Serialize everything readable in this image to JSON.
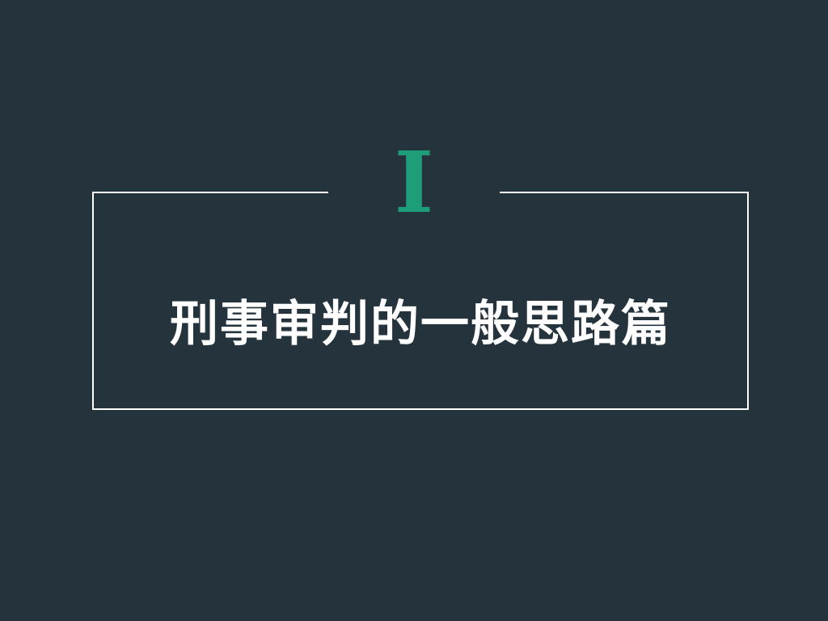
{
  "slide": {
    "section_numeral": "I",
    "title": "刑事审判的一般思路篇"
  },
  "colors": {
    "background": "#24333c",
    "accent": "#1e9e78",
    "frame": "#ffffff",
    "title": "#ffffff"
  }
}
